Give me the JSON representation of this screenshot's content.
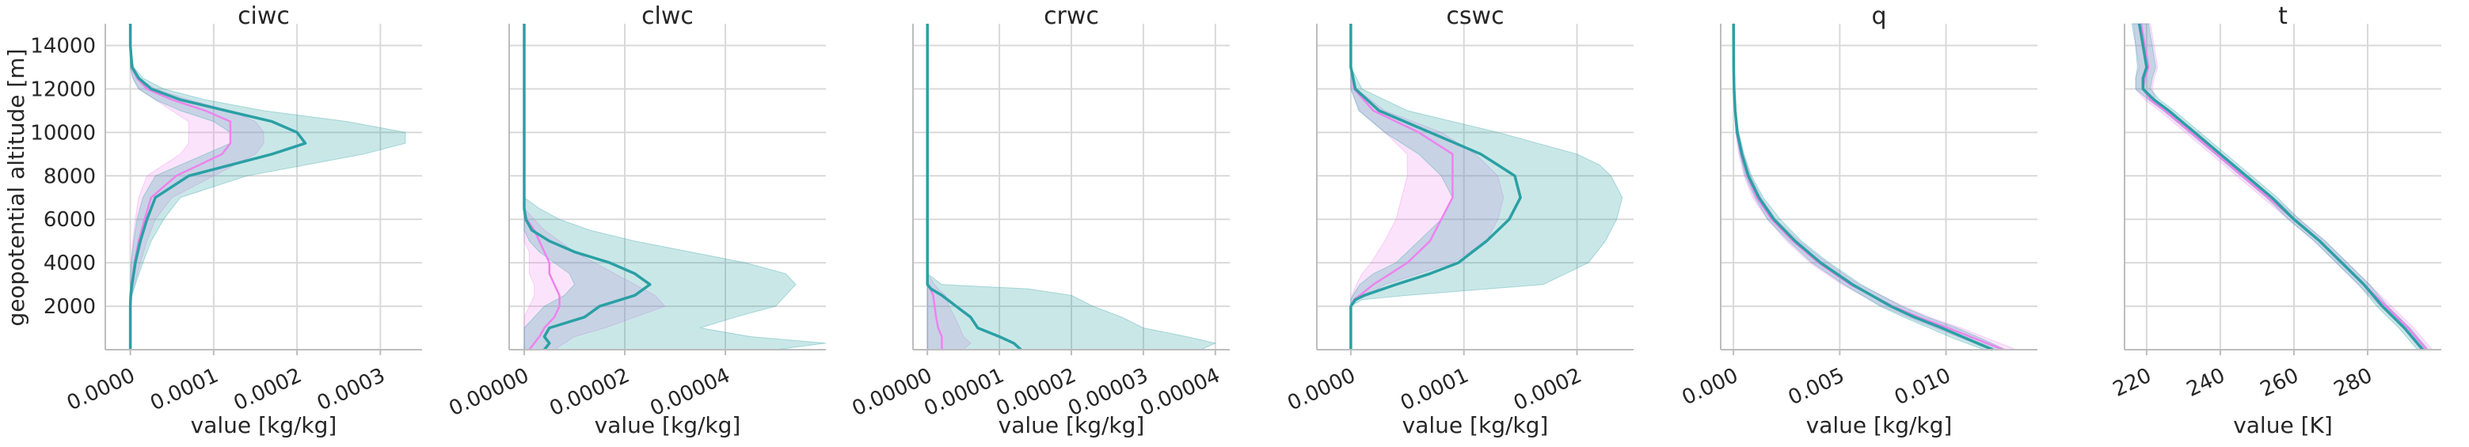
{
  "figure": {
    "ylabel": "geopotential altitude [m]",
    "y_ticks": [
      2000,
      4000,
      6000,
      8000,
      10000,
      12000,
      14000
    ],
    "ylim": [
      0,
      15000
    ]
  },
  "chart_data": [
    {
      "type": "line",
      "title": "ciwc",
      "xlabel": "value [kg/kg]",
      "xlim": [
        -3e-05,
        0.00035
      ],
      "x_ticks": [
        0.0,
        0.0001,
        0.0002,
        0.0003
      ],
      "x_tick_labels": [
        "0.0000",
        "0.0001",
        "0.0002",
        "0.0003"
      ],
      "altitude": [
        0,
        2000,
        2500,
        3000,
        4000,
        5000,
        6000,
        7000,
        8000,
        9000,
        9500,
        10000,
        10500,
        11000,
        11500,
        12000,
        12500,
        13000,
        14000,
        15000
      ],
      "series": [
        {
          "values": [
            0,
            0,
            5e-07,
            2e-06,
            6e-06,
            1.2e-05,
            2e-05,
            3e-05,
            7e-05,
            0.00017,
            0.00021,
            0.0002,
            0.00017,
            0.000115,
            6e-05,
            2.5e-05,
            1e-05,
            2e-06,
            0,
            0
          ],
          "band_low": [
            0,
            0,
            0,
            0,
            1e-06,
            4e-06,
            8e-06,
            1.5e-05,
            3e-05,
            9e-05,
            0.00012,
            0.00012,
            0.0001,
            6e-05,
            3e-05,
            1e-05,
            3e-06,
            0,
            0,
            0
          ],
          "band_high": [
            0,
            0,
            2e-06,
            6e-06,
            1.5e-05,
            2.5e-05,
            4e-05,
            6e-05,
            0.00014,
            0.00028,
            0.00033,
            0.00033,
            0.00026,
            0.00016,
            9e-05,
            4e-05,
            1.5e-05,
            4e-06,
            0,
            0
          ],
          "color": "#2aa0a4"
        },
        {
          "values": [
            0,
            0,
            4e-07,
            1.5e-06,
            5e-06,
            1e-05,
            1.7e-05,
            2.5e-05,
            5.5e-05,
            0.00011,
            0.00012,
            0.00012,
            0.00012,
            9e-05,
            5e-05,
            2e-05,
            8e-06,
            1.5e-06,
            0,
            0
          ],
          "band_low": [
            0,
            0,
            0,
            0,
            1e-06,
            3e-06,
            6e-06,
            1e-05,
            2e-05,
            6e-05,
            7e-05,
            7e-05,
            7e-05,
            5e-05,
            3e-05,
            1e-05,
            3e-06,
            0,
            0,
            0
          ],
          "band_high": [
            0,
            0,
            1.5e-06,
            5e-06,
            1.2e-05,
            2e-05,
            3e-05,
            5e-05,
            0.0001,
            0.00015,
            0.00016,
            0.00016,
            0.00015,
            0.00012,
            7e-05,
            3e-05,
            1e-05,
            3e-06,
            0,
            0
          ],
          "color": "#ee82ee"
        }
      ]
    },
    {
      "type": "line",
      "title": "clwc",
      "xlabel": "value [kg/kg]",
      "xlim": [
        -3e-06,
        6e-05
      ],
      "x_ticks": [
        0.0,
        2e-05,
        4e-05
      ],
      "x_tick_labels": [
        "0.00000",
        "0.00002",
        "0.00004"
      ],
      "altitude": [
        0,
        300,
        600,
        1000,
        1500,
        2000,
        2500,
        3000,
        3500,
        4000,
        4500,
        5000,
        5500,
        6000,
        6500,
        7000,
        8000,
        10000,
        15000
      ],
      "series": [
        {
          "values": [
            4e-06,
            5e-06,
            4e-06,
            5e-06,
            1.2e-05,
            1.5e-05,
            2.2e-05,
            2.5e-05,
            2.2e-05,
            1.7e-05,
            1e-05,
            5e-06,
            1.5e-06,
            3e-07,
            0,
            0,
            0,
            0,
            0
          ],
          "band_low": [
            0,
            0,
            0,
            0,
            2e-06,
            4e-06,
            8e-06,
            1e-05,
            9e-06,
            6e-06,
            3e-06,
            1e-06,
            0,
            0,
            0,
            0,
            0,
            0,
            0
          ],
          "band_high": [
            5e-05,
            6e-05,
            4.5e-05,
            3.5e-05,
            4.2e-05,
            5e-05,
            5.2e-05,
            5.4e-05,
            5.2e-05,
            4.4e-05,
            3.3e-05,
            2.2e-05,
            1.3e-05,
            7e-06,
            3e-06,
            0,
            0,
            0,
            0
          ],
          "color": "#2aa0a4"
        },
        {
          "values": [
            1e-06,
            2e-06,
            3e-06,
            4e-06,
            6e-06,
            7e-06,
            7e-06,
            6e-06,
            5e-06,
            5e-06,
            4e-06,
            3e-06,
            2e-06,
            5e-07,
            0,
            0,
            0,
            0,
            0
          ],
          "band_low": [
            0,
            0,
            0,
            0,
            0,
            1e-06,
            2e-06,
            2e-06,
            1e-06,
            1e-06,
            1e-06,
            0,
            0,
            0,
            0,
            0,
            0,
            0,
            0
          ],
          "band_high": [
            6e-06,
            8e-06,
            1e-05,
            1.6e-05,
            2.2e-05,
            2.8e-05,
            2.6e-05,
            2.2e-05,
            1.8e-05,
            1.4e-05,
            1e-05,
            7e-06,
            4e-06,
            2e-06,
            0,
            0,
            0,
            0,
            0
          ],
          "color": "#ee82ee"
        }
      ]
    },
    {
      "type": "line",
      "title": "crwc",
      "xlabel": "value [kg/kg]",
      "xlim": [
        -2e-06,
        4.2e-05
      ],
      "x_ticks": [
        0.0,
        1e-05,
        2e-05,
        3e-05,
        4e-05
      ],
      "x_tick_labels": [
        "0.00000",
        "0.00001",
        "0.00002",
        "0.00003",
        "0.00004"
      ],
      "altitude": [
        0,
        300,
        600,
        1000,
        1500,
        2000,
        2500,
        2800,
        3000,
        3500,
        15000
      ],
      "series": [
        {
          "values": [
            1.3e-05,
            1.2e-05,
            1e-05,
            7e-06,
            6e-06,
            4e-06,
            2e-06,
            5e-07,
            0,
            0,
            0
          ],
          "band_low": [
            0,
            0,
            0,
            0,
            0,
            0,
            0,
            0,
            0,
            0,
            0
          ],
          "band_high": [
            3.8e-05,
            4e-05,
            3.6e-05,
            3e-05,
            2.7e-05,
            2.3e-05,
            2e-05,
            1.4e-05,
            2e-06,
            0,
            0
          ],
          "color": "#2aa0a4"
        },
        {
          "values": [
            2e-06,
            2e-06,
            2e-06,
            1.5e-06,
            1.2e-06,
            1e-06,
            8e-07,
            4e-07,
            0,
            0,
            0
          ],
          "band_low": [
            0,
            0,
            0,
            0,
            0,
            0,
            0,
            0,
            0,
            0,
            0
          ],
          "band_high": [
            5e-06,
            6e-06,
            5e-06,
            4.5e-06,
            3.8e-06,
            3e-06,
            2.5e-06,
            1.5e-06,
            1e-06,
            0,
            0
          ],
          "color": "#ee82ee"
        }
      ]
    },
    {
      "type": "line",
      "title": "cswc",
      "xlabel": "value [kg/kg]",
      "xlim": [
        -3e-05,
        0.00025
      ],
      "x_ticks": [
        0.0,
        0.0001,
        0.0002
      ],
      "x_tick_labels": [
        "0.0000",
        "0.0001",
        "0.0002"
      ],
      "altitude": [
        0,
        2000,
        2300,
        2500,
        3000,
        3500,
        4000,
        5000,
        6000,
        7000,
        8000,
        8500,
        9000,
        10000,
        11000,
        12000,
        13000,
        15000
      ],
      "series": [
        {
          "values": [
            0,
            0,
            4e-06,
            1.2e-05,
            4e-05,
            7e-05,
            9.5e-05,
            0.00012,
            0.00014,
            0.00015,
            0.000145,
            0.00013,
            0.000115,
            7e-05,
            2.5e-05,
            4e-06,
            0,
            0
          ],
          "band_low": [
            0,
            0,
            0,
            2e-06,
            8e-06,
            2e-05,
            4e-05,
            6e-05,
            8e-05,
            9e-05,
            8e-05,
            7e-05,
            6e-05,
            3e-05,
            7e-06,
            0,
            0,
            0
          ],
          "band_high": [
            0,
            0,
            1e-05,
            5e-05,
            0.00017,
            0.00019,
            0.00021,
            0.000225,
            0.000235,
            0.00024,
            0.00023,
            0.00022,
            0.0002,
            0.00013,
            5e-05,
            1e-05,
            0,
            0
          ],
          "color": "#2aa0a4"
        },
        {
          "values": [
            0,
            0,
            3e-06,
            8e-06,
            2e-05,
            3.5e-05,
            5e-05,
            7e-05,
            8e-05,
            9e-05,
            9e-05,
            9e-05,
            9e-05,
            6e-05,
            2e-05,
            3e-06,
            0,
            0
          ],
          "band_low": [
            0,
            0,
            0,
            1e-06,
            5e-06,
            1e-05,
            1.8e-05,
            3e-05,
            4e-05,
            4.5e-05,
            5e-05,
            5e-05,
            5e-05,
            3e-05,
            8e-06,
            0,
            0,
            0
          ],
          "band_high": [
            0,
            0,
            6e-06,
            1.5e-05,
            3e-05,
            6e-05,
            9e-05,
            0.00012,
            0.00013,
            0.000135,
            0.00013,
            0.00012,
            0.00011,
            8e-05,
            3e-05,
            5e-06,
            0,
            0
          ],
          "color": "#ee82ee"
        }
      ]
    },
    {
      "type": "line",
      "title": "q",
      "xlabel": "value [kg/kg]",
      "xlim": [
        -0.0006,
        0.0143
      ],
      "x_ticks": [
        0.0,
        0.005,
        0.01
      ],
      "x_tick_labels": [
        "0.000",
        "0.005",
        "0.010"
      ],
      "altitude": [
        0,
        500,
        1000,
        1500,
        2000,
        3000,
        4000,
        5000,
        6000,
        7000,
        8000,
        9000,
        10000,
        11000,
        12000,
        13000,
        15000
      ],
      "series": [
        {
          "values": [
            0.0122,
            0.011,
            0.0098,
            0.0085,
            0.0074,
            0.0056,
            0.0041,
            0.0029,
            0.0019,
            0.0012,
            0.0007,
            0.0004,
            0.00018,
            8e-05,
            3e-05,
            1e-05,
            5e-06
          ],
          "band_low": [
            0.0118,
            0.0104,
            0.0092,
            0.008,
            0.0069,
            0.0052,
            0.0037,
            0.0026,
            0.0016,
            0.001,
            0.00055,
            0.0003,
            0.00012,
            5e-05,
            1e-05,
            0,
            0
          ],
          "band_high": [
            0.0128,
            0.0117,
            0.0105,
            0.0091,
            0.0079,
            0.006,
            0.0045,
            0.0032,
            0.0022,
            0.0014,
            0.00085,
            0.0005,
            0.00025,
            0.00011,
            5e-05,
            2e-05,
            1e-05
          ],
          "color": "#2aa0a4"
        },
        {
          "values": [
            0.0127,
            0.0114,
            0.0101,
            0.0087,
            0.0075,
            0.0055,
            0.004,
            0.0028,
            0.0018,
            0.0011,
            0.00065,
            0.00035,
            0.00016,
            7e-05,
            3e-05,
            1e-05,
            5e-06
          ],
          "band_low": [
            0.0121,
            0.0108,
            0.0095,
            0.0082,
            0.007,
            0.0051,
            0.0036,
            0.0025,
            0.0016,
            0.0009,
            0.0005,
            0.00025,
            0.0001,
            4e-05,
            1e-05,
            0,
            0
          ],
          "band_high": [
            0.0133,
            0.012,
            0.0107,
            0.0092,
            0.008,
            0.0059,
            0.0044,
            0.0031,
            0.002,
            0.0013,
            0.0008,
            0.00045,
            0.0002,
            0.0001,
            4e-05,
            2e-05,
            1e-05
          ],
          "color": "#ee82ee"
        }
      ]
    },
    {
      "type": "line",
      "title": "t",
      "xlabel": "value [K]",
      "xlim": [
        214,
        300
      ],
      "x_ticks": [
        220,
        240,
        260,
        280
      ],
      "x_tick_labels": [
        "220",
        "240",
        "260",
        "280"
      ],
      "altitude": [
        0,
        1000,
        2000,
        3000,
        4000,
        5000,
        6000,
        7000,
        8000,
        9000,
        10000,
        11000,
        11500,
        12000,
        12500,
        13000,
        14000,
        15000
      ],
      "series": [
        {
          "values": [
            295,
            290,
            284,
            279,
            273,
            267,
            260,
            254,
            247,
            240,
            233,
            226,
            222,
            219,
            219,
            220,
            219,
            218
          ],
          "band_low": [
            293.5,
            288.5,
            282.5,
            277.5,
            271.5,
            265.5,
            258.5,
            252.5,
            245.5,
            238.5,
            231.5,
            224.5,
            220.5,
            217,
            217,
            217.5,
            217,
            216
          ],
          "band_high": [
            296.5,
            291.5,
            285.5,
            280.5,
            274.5,
            268.5,
            261.5,
            255.5,
            248.5,
            241.5,
            234.5,
            227.5,
            223.5,
            221,
            221.5,
            222.5,
            221.5,
            220.5
          ],
          "color": "#2aa0a4"
        },
        {
          "values": [
            296,
            291,
            285,
            279,
            273,
            267,
            260,
            253,
            246,
            239,
            232,
            225,
            221,
            219,
            219.5,
            220.5,
            219.5,
            218.5
          ],
          "band_low": [
            294.5,
            289.5,
            283.5,
            277.5,
            271.5,
            265.5,
            258.5,
            251.5,
            244.5,
            237.5,
            230.5,
            223.5,
            219.5,
            217,
            217,
            218,
            217,
            216.5
          ],
          "band_high": [
            297.5,
            292.5,
            286.5,
            280.5,
            274.5,
            268.5,
            261.5,
            254.5,
            247.5,
            240.5,
            233.5,
            226.5,
            222.5,
            221.5,
            222,
            223,
            222,
            221
          ],
          "color": "#ee82ee"
        }
      ]
    }
  ]
}
